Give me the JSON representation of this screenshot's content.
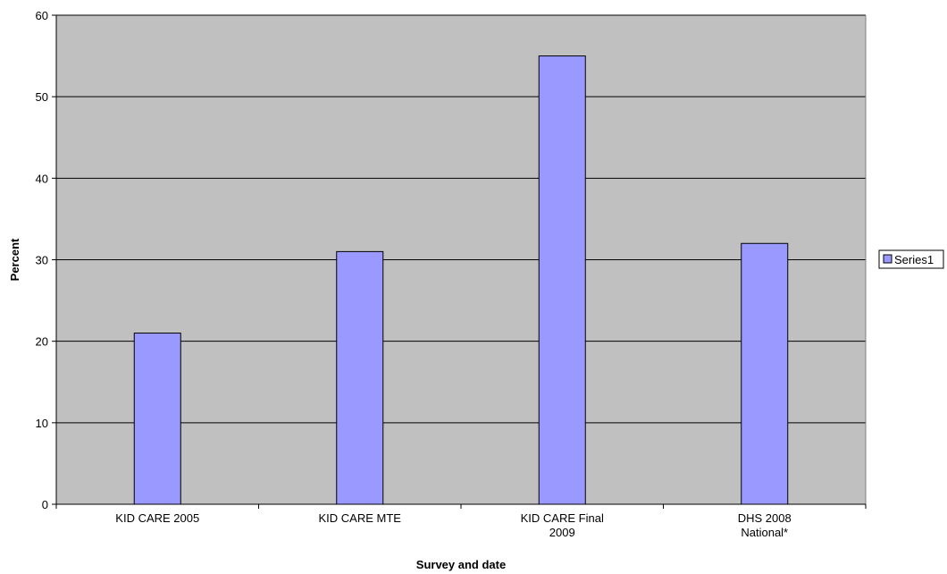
{
  "chart_data": {
    "type": "bar",
    "categories": [
      [
        "KID CARE  2005"
      ],
      [
        "KID CARE MTE"
      ],
      [
        "KID CARE Final",
        "2009"
      ],
      [
        "DHS 2008",
        "National*"
      ]
    ],
    "series": [
      {
        "name": "Series1",
        "values": [
          21,
          31,
          55,
          32
        ]
      }
    ],
    "xlabel": "Survey and date",
    "ylabel": "Percent",
    "ylim": [
      0,
      60
    ],
    "yticks": [
      0,
      10,
      20,
      30,
      40,
      50,
      60
    ],
    "grid": true,
    "legend": "right",
    "colors": {
      "plot_background": "#c0c0c0",
      "bar_fill": "#9999ff",
      "bar_stroke": "#000000",
      "gridline": "#000000"
    }
  }
}
